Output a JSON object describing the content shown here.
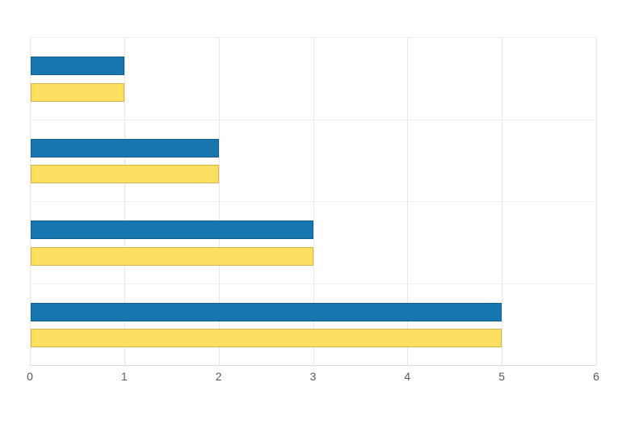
{
  "chart_data": {
    "type": "bar",
    "orientation": "horizontal",
    "title": "",
    "xlabel": "",
    "ylabel": "",
    "categories": [
      "",
      "",
      "",
      ""
    ],
    "series": [
      {
        "name": "blue",
        "color": "#1775b0",
        "border_color": "#14608f",
        "values": [
          1,
          2,
          3,
          5
        ]
      },
      {
        "name": "yellow",
        "color": "#fde062",
        "border_color": "#d6b64a",
        "values": [
          1,
          2,
          3,
          5
        ]
      }
    ],
    "xlim": [
      0,
      6
    ],
    "x_ticks": [
      "0",
      "1",
      "2",
      "3",
      "4",
      "5",
      "6"
    ],
    "grid": true,
    "legend": false,
    "colors": {
      "grid_vertical": "#e8e8e8",
      "grid_horizontal": "#f0f0f0",
      "axis_line": "#dcdcdc",
      "tick_label": "#595959",
      "background": "#ffffff"
    }
  }
}
